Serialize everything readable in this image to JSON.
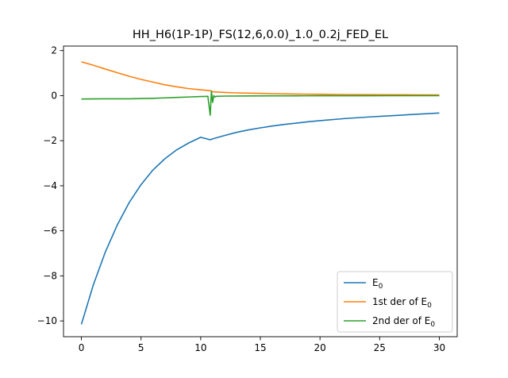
{
  "chart_data": {
    "type": "line",
    "title": "HH_H6(1P-1P)_FS(12,6,0.0)_1.0_0.2j_FED_EL",
    "xlabel": "",
    "ylabel": "",
    "xlim": [
      -1.5,
      31.5
    ],
    "ylim": [
      -10.7,
      2.2
    ],
    "xticks": [
      0,
      5,
      10,
      15,
      20,
      25,
      30
    ],
    "xtick_labels": [
      "0",
      "5",
      "10",
      "15",
      "20",
      "25",
      "30"
    ],
    "yticks": [
      -10,
      -8,
      -6,
      -4,
      -2,
      0,
      2
    ],
    "ytick_labels": [
      "−10",
      "−8",
      "−6",
      "−4",
      "−2",
      "0",
      "2"
    ],
    "grid": false,
    "legend_position": "lower-right",
    "series": [
      {
        "name": "E",
        "name_sub": "0",
        "color": "#1f77b4",
        "x": [
          0,
          1,
          2,
          3,
          4,
          5,
          6,
          7,
          8,
          9,
          10,
          10.8,
          11,
          12,
          13,
          14,
          15,
          16,
          17,
          18,
          19,
          20,
          22,
          24,
          26,
          28,
          30
        ],
        "y": [
          -10.15,
          -8.4,
          -6.95,
          -5.75,
          -4.75,
          -3.95,
          -3.3,
          -2.8,
          -2.4,
          -2.1,
          -1.85,
          -1.96,
          -1.92,
          -1.77,
          -1.63,
          -1.52,
          -1.43,
          -1.35,
          -1.28,
          -1.22,
          -1.16,
          -1.11,
          -1.02,
          -0.95,
          -0.89,
          -0.83,
          -0.77
        ]
      },
      {
        "name": "1st der of E",
        "name_sub": "0",
        "color": "#ff7f0e",
        "x": [
          0,
          1,
          2,
          3,
          4,
          5,
          6,
          7,
          8,
          9,
          10,
          10.8,
          10.9,
          11,
          12,
          13,
          14,
          15,
          16,
          18,
          20,
          22,
          24,
          26,
          28,
          30
        ],
        "y": [
          1.5,
          1.35,
          1.18,
          1.02,
          0.86,
          0.72,
          0.6,
          0.48,
          0.39,
          0.31,
          0.26,
          0.22,
          0.2,
          0.17,
          0.14,
          0.12,
          0.11,
          0.1,
          0.09,
          0.07,
          0.06,
          0.05,
          0.045,
          0.04,
          0.035,
          0.03
        ]
      },
      {
        "name": "2nd der of E",
        "name_sub": "0",
        "color": "#2ca02c",
        "x": [
          0,
          2,
          4,
          5,
          6,
          7,
          8,
          9,
          10,
          10.6,
          10.8,
          10.9,
          11.0,
          11.1,
          11.2,
          11.3,
          12,
          14,
          16,
          18,
          20,
          22,
          24,
          26,
          28,
          30
        ],
        "y": [
          -0.15,
          -0.14,
          -0.14,
          -0.13,
          -0.12,
          -0.1,
          -0.08,
          -0.06,
          -0.04,
          -0.03,
          -0.87,
          0.2,
          -0.3,
          0.0,
          -0.06,
          -0.03,
          -0.02,
          -0.015,
          -0.01,
          -0.008,
          -0.006,
          -0.005,
          -0.004,
          -0.003,
          -0.003,
          -0.003
        ]
      }
    ]
  }
}
